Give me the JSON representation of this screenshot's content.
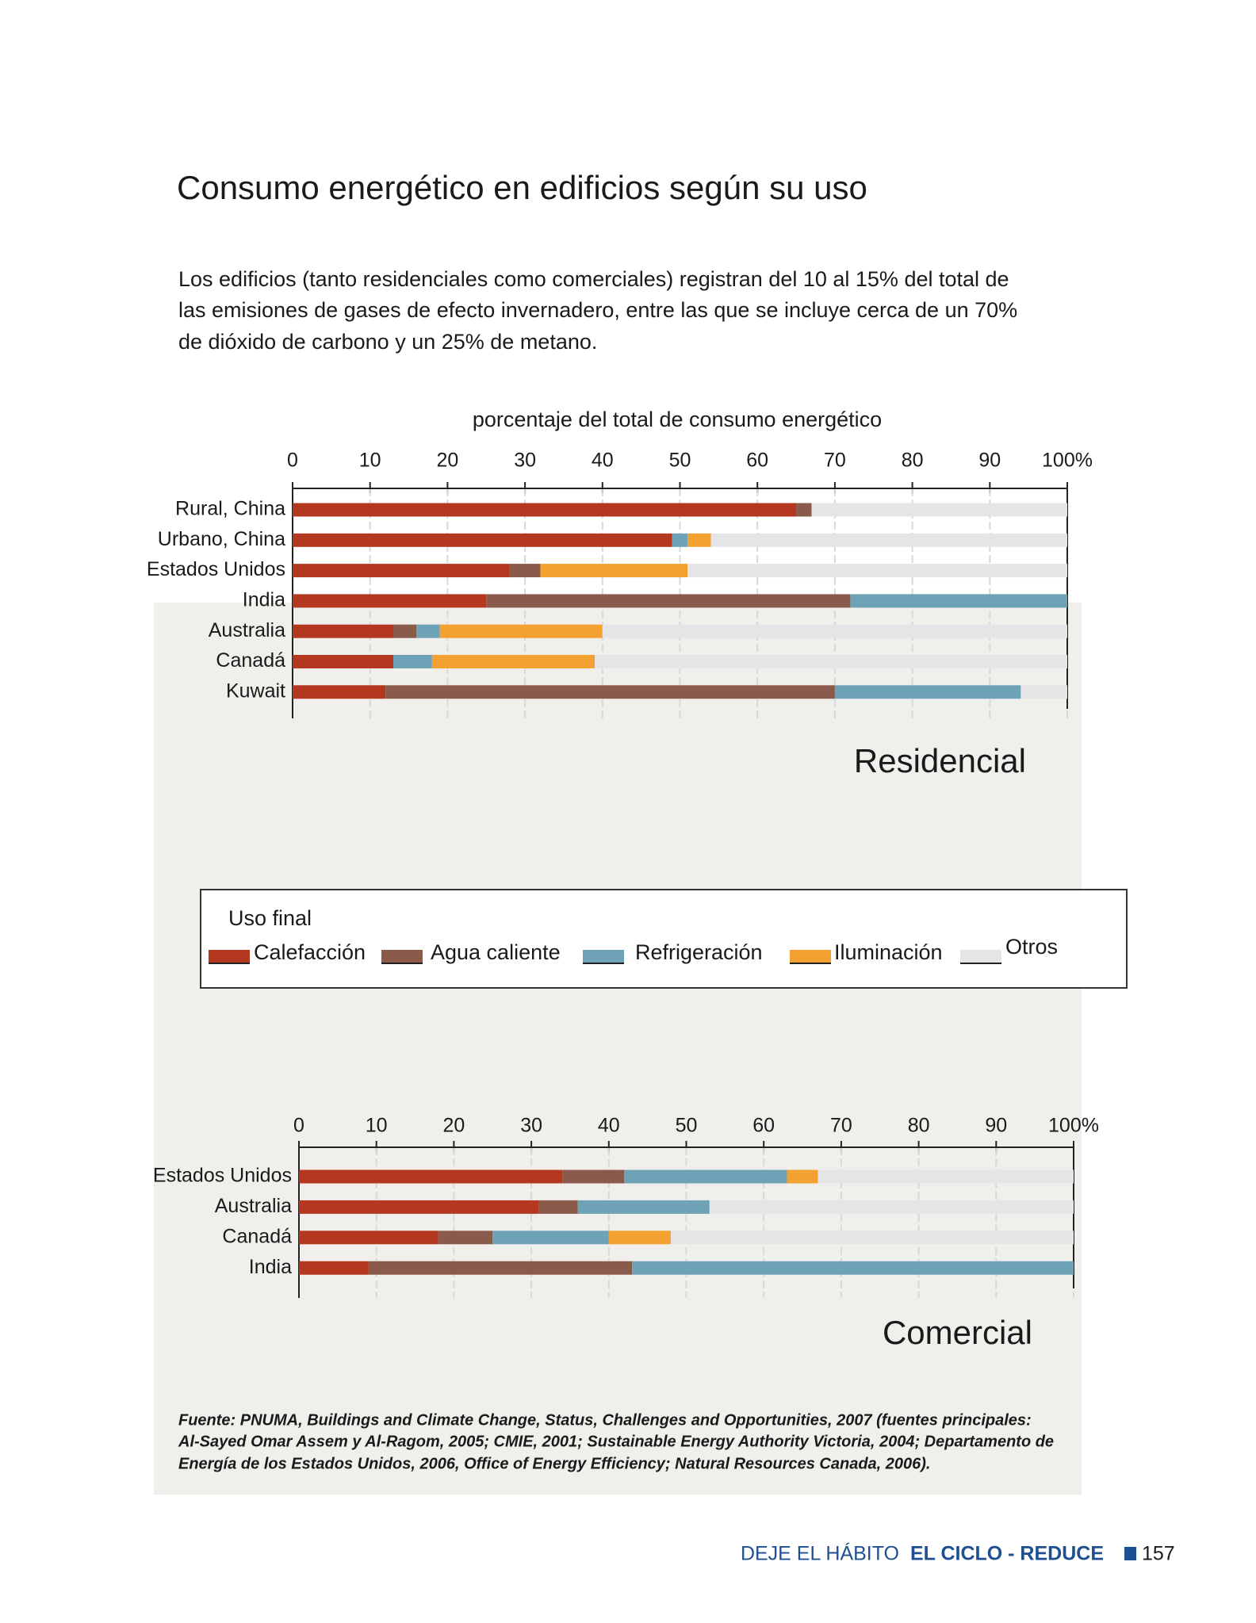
{
  "header": {
    "title": "Consumo energético en edificios según su uso",
    "intro": [
      "Los edificios (tanto residenciales como comerciales) registran del 10 al 15% del total de",
      "las emisiones de gases de efecto invernadero, entre las que se incluye cerca de un 70%",
      "de dióxido de carbono y un 25% de metano."
    ]
  },
  "chart_data": [
    {
      "type": "stacked-bar-horizontal",
      "title": "Residencial",
      "xlabel": "porcentaje del total de consumo energético",
      "categories": [
        "Rural, China",
        "Urbano, China",
        "Estados Unidos",
        "India",
        "Australia",
        "Canadá",
        "Kuwait"
      ],
      "series": [
        {
          "name": "Calefacción",
          "color": "#b3381f",
          "values": [
            65,
            49,
            28,
            25,
            13,
            13,
            12
          ]
        },
        {
          "name": "Agua caliente",
          "color": "#8a5a4b",
          "values": [
            2,
            0,
            4,
            47,
            3,
            0,
            58
          ]
        },
        {
          "name": "Refrigeración",
          "color": "#6ea2b6",
          "values": [
            0,
            2,
            0,
            28,
            3,
            5,
            24
          ]
        },
        {
          "name": "Iluminación",
          "color": "#f3a131",
          "values": [
            0,
            3,
            19,
            0,
            21,
            21,
            0
          ]
        },
        {
          "name": "Otros",
          "color": "#e5e5e8",
          "values": [
            33,
            46,
            49,
            0,
            60,
            61,
            6
          ]
        }
      ],
      "xlim": [
        0,
        100
      ],
      "xticks": [
        0,
        10,
        20,
        30,
        40,
        50,
        60,
        70,
        80,
        90,
        {
          "value": 100,
          "label": "100%"
        }
      ],
      "grid": true
    },
    {
      "type": "stacked-bar-horizontal",
      "title": "Comercial",
      "categories": [
        "Estados Unidos",
        "Australia",
        "Canadá",
        "India"
      ],
      "series": [
        {
          "color": "#b3381f",
          "values": [
            34,
            31,
            18,
            9
          ]
        },
        {
          "color": "#8a5a4b",
          "values": [
            8,
            5,
            7,
            34
          ]
        },
        {
          "color": "#6ea2b6",
          "values": [
            21,
            17,
            15,
            57
          ]
        },
        {
          "color": "#f3a131",
          "values": [
            4,
            0,
            8,
            0
          ]
        },
        {
          "color": "#e5e5e8",
          "values": [
            33,
            47,
            52,
            0
          ]
        }
      ],
      "xlim": [
        0,
        100
      ],
      "xticks": [
        0,
        10,
        20,
        30,
        40,
        50,
        60,
        70,
        80,
        90,
        {
          "value": 100,
          "label": "100%"
        }
      ],
      "grid": true
    }
  ],
  "legend": {
    "title": "Uso final"
  },
  "source": [
    "Fuente: PNUMA, Buildings and Climate Change, Status, Challenges and Opportunities, 2007 (fuentes principales:",
    "Al-Sayed Omar Assem y Al-Ragom, 2005; CMIE, 2001; Sustainable Energy Authority Victoria, 2004; Departamento de",
    "Energía de los Estados Unidos, 2006, Office of Energy Efficiency; Natural Resources Canada, 2006)."
  ],
  "footer": {
    "section": "DEJE EL HÁBITO",
    "chapter": "EL CICLO - REDUCE",
    "page": "157"
  }
}
